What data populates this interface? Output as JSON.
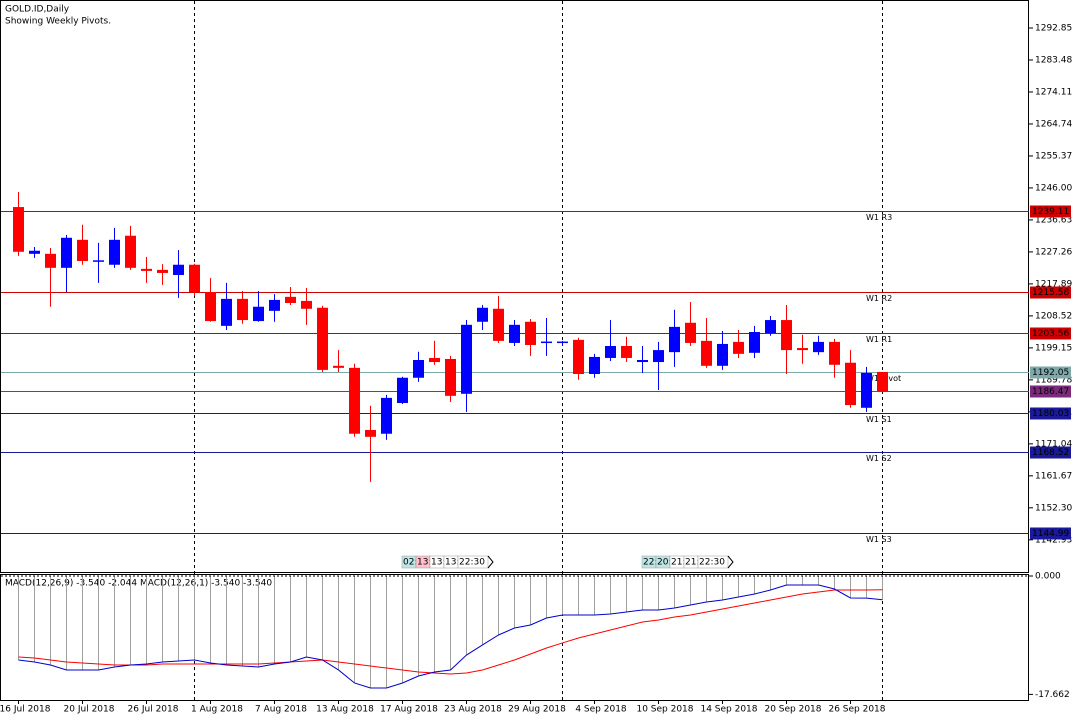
{
  "chart_data": [
    {
      "type": "candlestick",
      "title": "GOLD.ID,Daily",
      "subtitle": "Showing Weekly Pivots.",
      "categories": [
        "16 Jul 2018",
        null,
        null,
        null,
        "20 Jul 2018",
        null,
        null,
        null,
        "26 Jul 2018",
        null,
        null,
        null,
        "1 Aug 2018",
        null,
        null,
        null,
        "7 Aug 2018",
        null,
        null,
        null,
        "13 Aug 2018",
        null,
        null,
        null,
        "17 Aug 2018",
        null,
        null,
        null,
        "23 Aug 2018",
        null,
        null,
        null,
        "29 Aug 2018",
        null,
        null,
        null,
        "4 Sep 2018",
        null,
        null,
        null,
        "10 Sep 2018",
        null,
        null,
        null,
        "14 Sep 2018",
        null,
        null,
        null,
        "20 Sep 2018",
        null,
        null,
        null,
        "26 Sep 2018",
        null,
        null
      ],
      "open": [
        1240.4,
        1226.7,
        1226.7,
        1222.6,
        1230.8,
        1224.6,
        1223.5,
        1232.0,
        1222.3,
        1222.0,
        1220.5,
        1223.5,
        1215.5,
        1205.6,
        1213.5,
        1207.0,
        1210.0,
        1214.1,
        1212.9,
        1210.9,
        1193.9,
        1193.3,
        1175.1,
        1174.0,
        1183.0,
        1190.4,
        1196.2,
        1195.9,
        1185.7,
        1206.8,
        1210.6,
        1200.6,
        1206.8,
        1200.6,
        1200.6,
        1201.5,
        1191.5,
        1196.2,
        1199.7,
        1195.0,
        1195.0,
        1197.9,
        1206.5,
        1201.2,
        1193.9,
        1200.9,
        1197.7,
        1203.5,
        1207.3,
        1199.1,
        1197.9,
        1200.9,
        1194.8,
        1181.6,
        1192.1
      ],
      "high": [
        1244.8,
        1228.7,
        1228.4,
        1232.2,
        1235.2,
        1229.9,
        1234.3,
        1234.9,
        1225.8,
        1223.7,
        1227.8,
        1223.8,
        1219.6,
        1218.2,
        1215.8,
        1215.8,
        1214.9,
        1217.0,
        1216.7,
        1211.5,
        1198.5,
        1194.5,
        1182.2,
        1185.4,
        1190.7,
        1198.0,
        1201.2,
        1196.8,
        1207.3,
        1211.7,
        1214.4,
        1207.3,
        1207.6,
        1207.9,
        1201.2,
        1202.1,
        1197.4,
        1207.3,
        1202.4,
        1199.7,
        1200.9,
        1210.3,
        1212.6,
        1207.9,
        1204.1,
        1204.4,
        1205.6,
        1208.5,
        1211.7,
        1203.0,
        1202.7,
        1201.8,
        1198.5,
        1193.6,
        1192.1
      ],
      "low": [
        1226.1,
        1225.5,
        1211.2,
        1215.5,
        1223.5,
        1218.2,
        1222.6,
        1222.0,
        1218.2,
        1217.6,
        1213.8,
        1214.4,
        1206.8,
        1204.4,
        1206.2,
        1206.8,
        1206.8,
        1211.7,
        1205.9,
        1192.1,
        1192.1,
        1173.1,
        1159.9,
        1172.2,
        1182.7,
        1189.2,
        1194.2,
        1183.3,
        1180.4,
        1204.4,
        1200.6,
        1199.7,
        1196.8,
        1196.8,
        1200.0,
        1189.8,
        1190.4,
        1195.3,
        1195.0,
        1191.8,
        1186.8,
        1193.6,
        1199.7,
        1193.3,
        1192.7,
        1196.2,
        1196.2,
        1202.7,
        1191.5,
        1194.5,
        1197.1,
        1190.4,
        1181.6,
        1180.4,
        1186.2
      ],
      "close": [
        1227.3,
        1227.6,
        1222.6,
        1231.4,
        1224.6,
        1224.8,
        1230.8,
        1222.6,
        1221.7,
        1221.1,
        1223.5,
        1215.5,
        1207.0,
        1213.5,
        1207.3,
        1211.2,
        1213.2,
        1212.3,
        1210.6,
        1192.7,
        1193.3,
        1174.0,
        1173.1,
        1184.5,
        1190.4,
        1195.6,
        1195.0,
        1185.1,
        1205.9,
        1210.9,
        1201.2,
        1205.9,
        1200.0,
        1201.0,
        1201.0,
        1191.5,
        1196.5,
        1199.7,
        1196.2,
        1195.6,
        1198.5,
        1205.3,
        1200.6,
        1193.9,
        1200.3,
        1197.4,
        1203.8,
        1207.3,
        1198.5,
        1198.5,
        1200.9,
        1194.2,
        1182.4,
        1191.8,
        1186.47
      ],
      "up_color": "#0000ff",
      "down_color": "#ff0000",
      "ylim": [
        1133.5,
        1301.05
      ],
      "yticks": [
        1292.85,
        1283.48,
        1274.11,
        1264.74,
        1255.37,
        {
          "value": 1246,
          "label": "1246.00"
        },
        1236.63,
        1227.26,
        1217.89,
        1208.52,
        1199.15,
        1189.78,
        1180.41,
        1171.04,
        1161.67,
        {
          "value": 1152.3,
          "label": "1152.30"
        },
        1142.93
      ],
      "levels": [
        {
          "name": "W1 R3",
          "value": 1239.11,
          "color": "#cc0000"
        },
        {
          "name": "W1 R2",
          "value": 1215.58,
          "color": "#cc0000"
        },
        {
          "name": "W1 R1",
          "value": 1203.56,
          "color": "#cc0000"
        },
        {
          "name": "W1 Pivot",
          "value": 1192.05,
          "color": "#7fa9a9"
        },
        {
          "name": "W1 S1",
          "value": 1180.03,
          "color": "#1a1a99"
        },
        {
          "name": "W1 S2",
          "value": 1168.52,
          "color": "#1a1a99"
        },
        {
          "name": "W1 S3",
          "value": 1144.99,
          "color": "#1a1a99"
        }
      ],
      "price_line": {
        "value": 1186.47,
        "color": "#7b2a7b"
      },
      "session_labels": [
        [
          "02:",
          "13:",
          "13:",
          "13:",
          "22:30"
        ],
        [
          "22:",
          "20:",
          "21:",
          "21:",
          "22:30"
        ]
      ]
    },
    {
      "type": "line",
      "title": "MACD(12,26,9) -3.540 -2.044 MACD(12,26,1) -3.540 -3.540",
      "ylim": [
        -18.5,
        0.3
      ],
      "yticks": [
        {
          "value": 0,
          "label": "0.000"
        },
        -17.662
      ],
      "series": [
        {
          "style": "histogram",
          "color": "#a0a0a0",
          "values": [
            -12.53,
            -12.83,
            -13.28,
            -14.02,
            -14.02,
            -14.02,
            -13.58,
            -13.28,
            -13.13,
            -12.83,
            -12.68,
            -12.53,
            -12.98,
            -13.28,
            -13.43,
            -13.58,
            -13.13,
            -12.83,
            -12.08,
            -12.53,
            -14.02,
            -15.96,
            -16.71,
            -16.71,
            -15.96,
            -14.92,
            -14.32,
            -14.02,
            -11.79,
            -10.29,
            -8.8,
            -7.76,
            -7.31,
            -6.27,
            -5.82,
            -5.82,
            -5.82,
            -5.67,
            -5.37,
            -5.07,
            -5.07,
            -4.77,
            -4.33,
            -3.88,
            -3.58,
            -3.13,
            -2.68,
            -2.09,
            -1.34,
            -1.34,
            -1.34,
            -1.94,
            -3.28,
            -3.3,
            -3.54
          ]
        },
        {
          "style": "line",
          "color": "#ff0000",
          "values": [
            -12.08,
            -12.23,
            -12.53,
            -12.83,
            -12.98,
            -13.13,
            -13.28,
            -13.28,
            -13.28,
            -13.13,
            -13.13,
            -13.13,
            -13.13,
            -13.13,
            -13.13,
            -13.13,
            -12.98,
            -12.83,
            -12.68,
            -12.53,
            -12.83,
            -13.13,
            -13.43,
            -13.73,
            -14.02,
            -14.32,
            -14.47,
            -14.62,
            -14.47,
            -14.02,
            -13.28,
            -12.53,
            -11.64,
            -10.74,
            -9.99,
            -9.25,
            -8.65,
            -8.06,
            -7.46,
            -6.86,
            -6.56,
            -6.12,
            -5.82,
            -5.37,
            -4.92,
            -4.47,
            -4.03,
            -3.58,
            -3.13,
            -2.68,
            -2.39,
            -2.09,
            -2.09,
            -2.09,
            -2.044
          ]
        },
        {
          "style": "line",
          "color": "#0000cc",
          "values": [
            -12.53,
            -12.83,
            -13.28,
            -14.02,
            -14.02,
            -14.02,
            -13.58,
            -13.28,
            -13.13,
            -12.83,
            -12.68,
            -12.53,
            -12.98,
            -13.28,
            -13.43,
            -13.58,
            -13.13,
            -12.83,
            -12.08,
            -12.53,
            -14.02,
            -15.96,
            -16.71,
            -16.71,
            -15.96,
            -14.92,
            -14.32,
            -14.02,
            -11.79,
            -10.29,
            -8.8,
            -7.76,
            -7.31,
            -6.27,
            -5.82,
            -5.82,
            -5.82,
            -5.67,
            -5.37,
            -5.07,
            -5.07,
            -4.77,
            -4.33,
            -3.88,
            -3.58,
            -3.13,
            -2.68,
            -2.09,
            -1.34,
            -1.34,
            -1.34,
            -1.94,
            -3.28,
            -3.3,
            -3.54
          ]
        }
      ]
    }
  ]
}
